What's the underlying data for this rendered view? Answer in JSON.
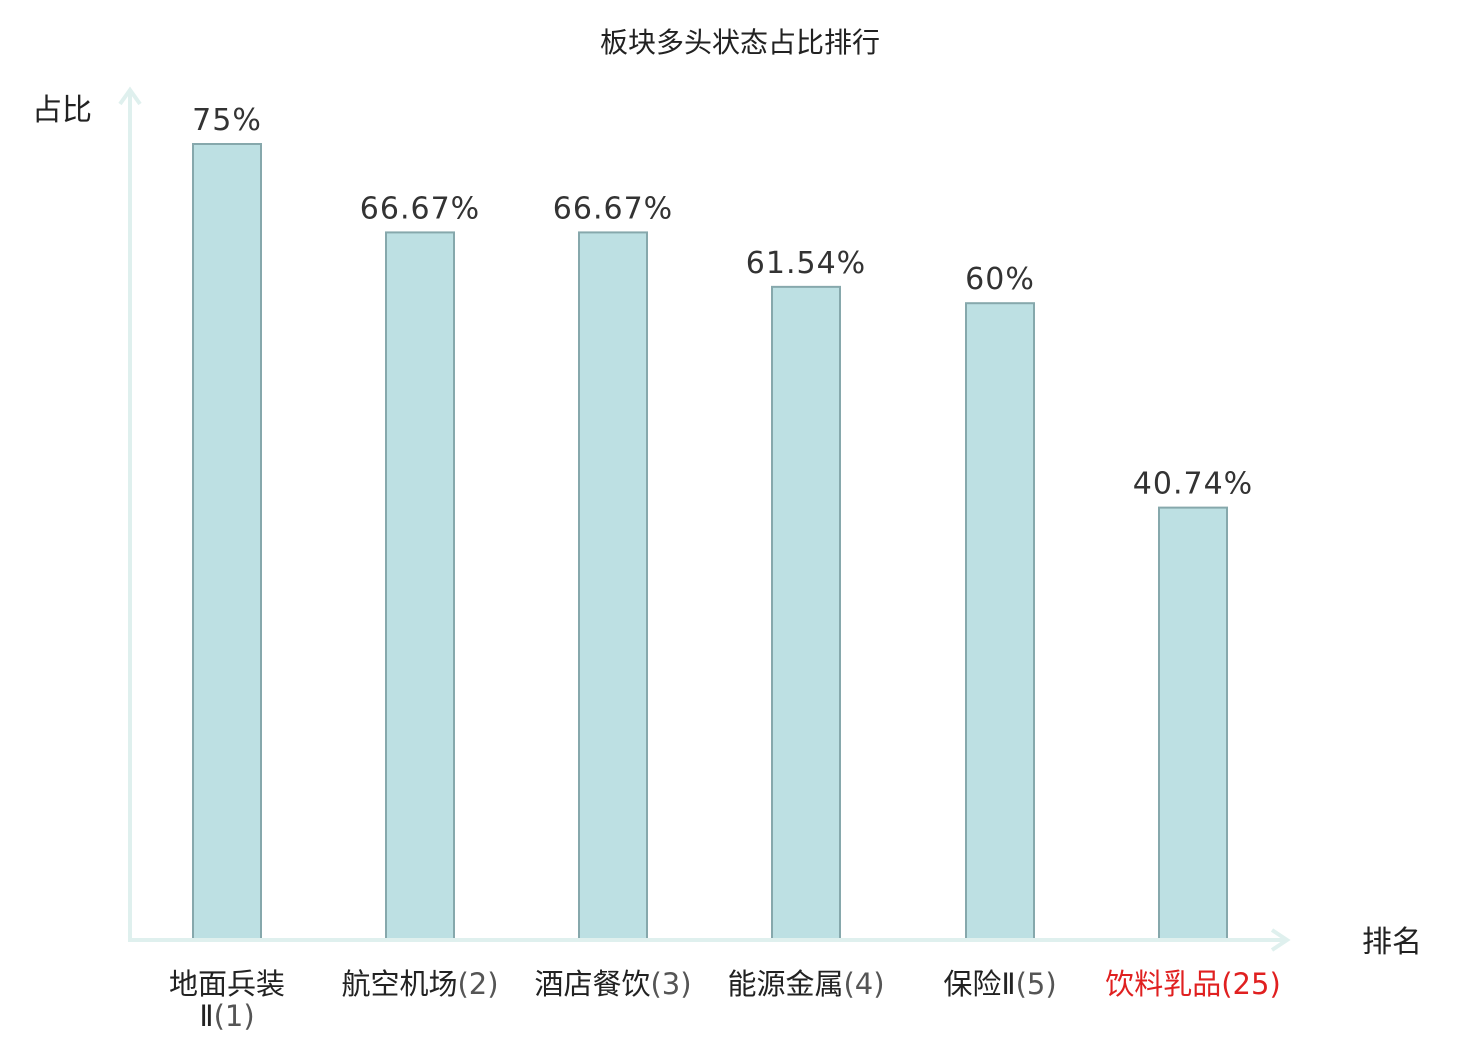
{
  "chart_data": {
    "type": "bar",
    "title": "板块多头状态占比排行",
    "ylabel": "占比",
    "xlabel": "排名",
    "ylim": [
      0,
      80
    ],
    "grid": false,
    "legend": "none",
    "categories": [
      {
        "name": "地面兵装Ⅱ",
        "rank": "(1)",
        "highlight": false
      },
      {
        "name": "航空机场",
        "rank": "(2)",
        "highlight": false
      },
      {
        "name": "酒店餐饮",
        "rank": "(3)",
        "highlight": false
      },
      {
        "name": "能源金属",
        "rank": "(4)",
        "highlight": false
      },
      {
        "name": "保险Ⅱ",
        "rank": "(5)",
        "highlight": false
      },
      {
        "name": "饮料乳品",
        "rank": "(25)",
        "highlight": true
      }
    ],
    "values": [
      75,
      66.67,
      66.67,
      61.54,
      60,
      40.74
    ],
    "value_labels": [
      "75%",
      "66.67%",
      "66.67%",
      "61.54%",
      "60%",
      "40.74%"
    ],
    "colors": {
      "bar_fill": "#bde0e3",
      "bar_stroke": "#86a8ac",
      "axis": "#dff0ee",
      "label_normal": "#222222",
      "rank_normal": "#555555",
      "highlight": "#e02020"
    }
  }
}
